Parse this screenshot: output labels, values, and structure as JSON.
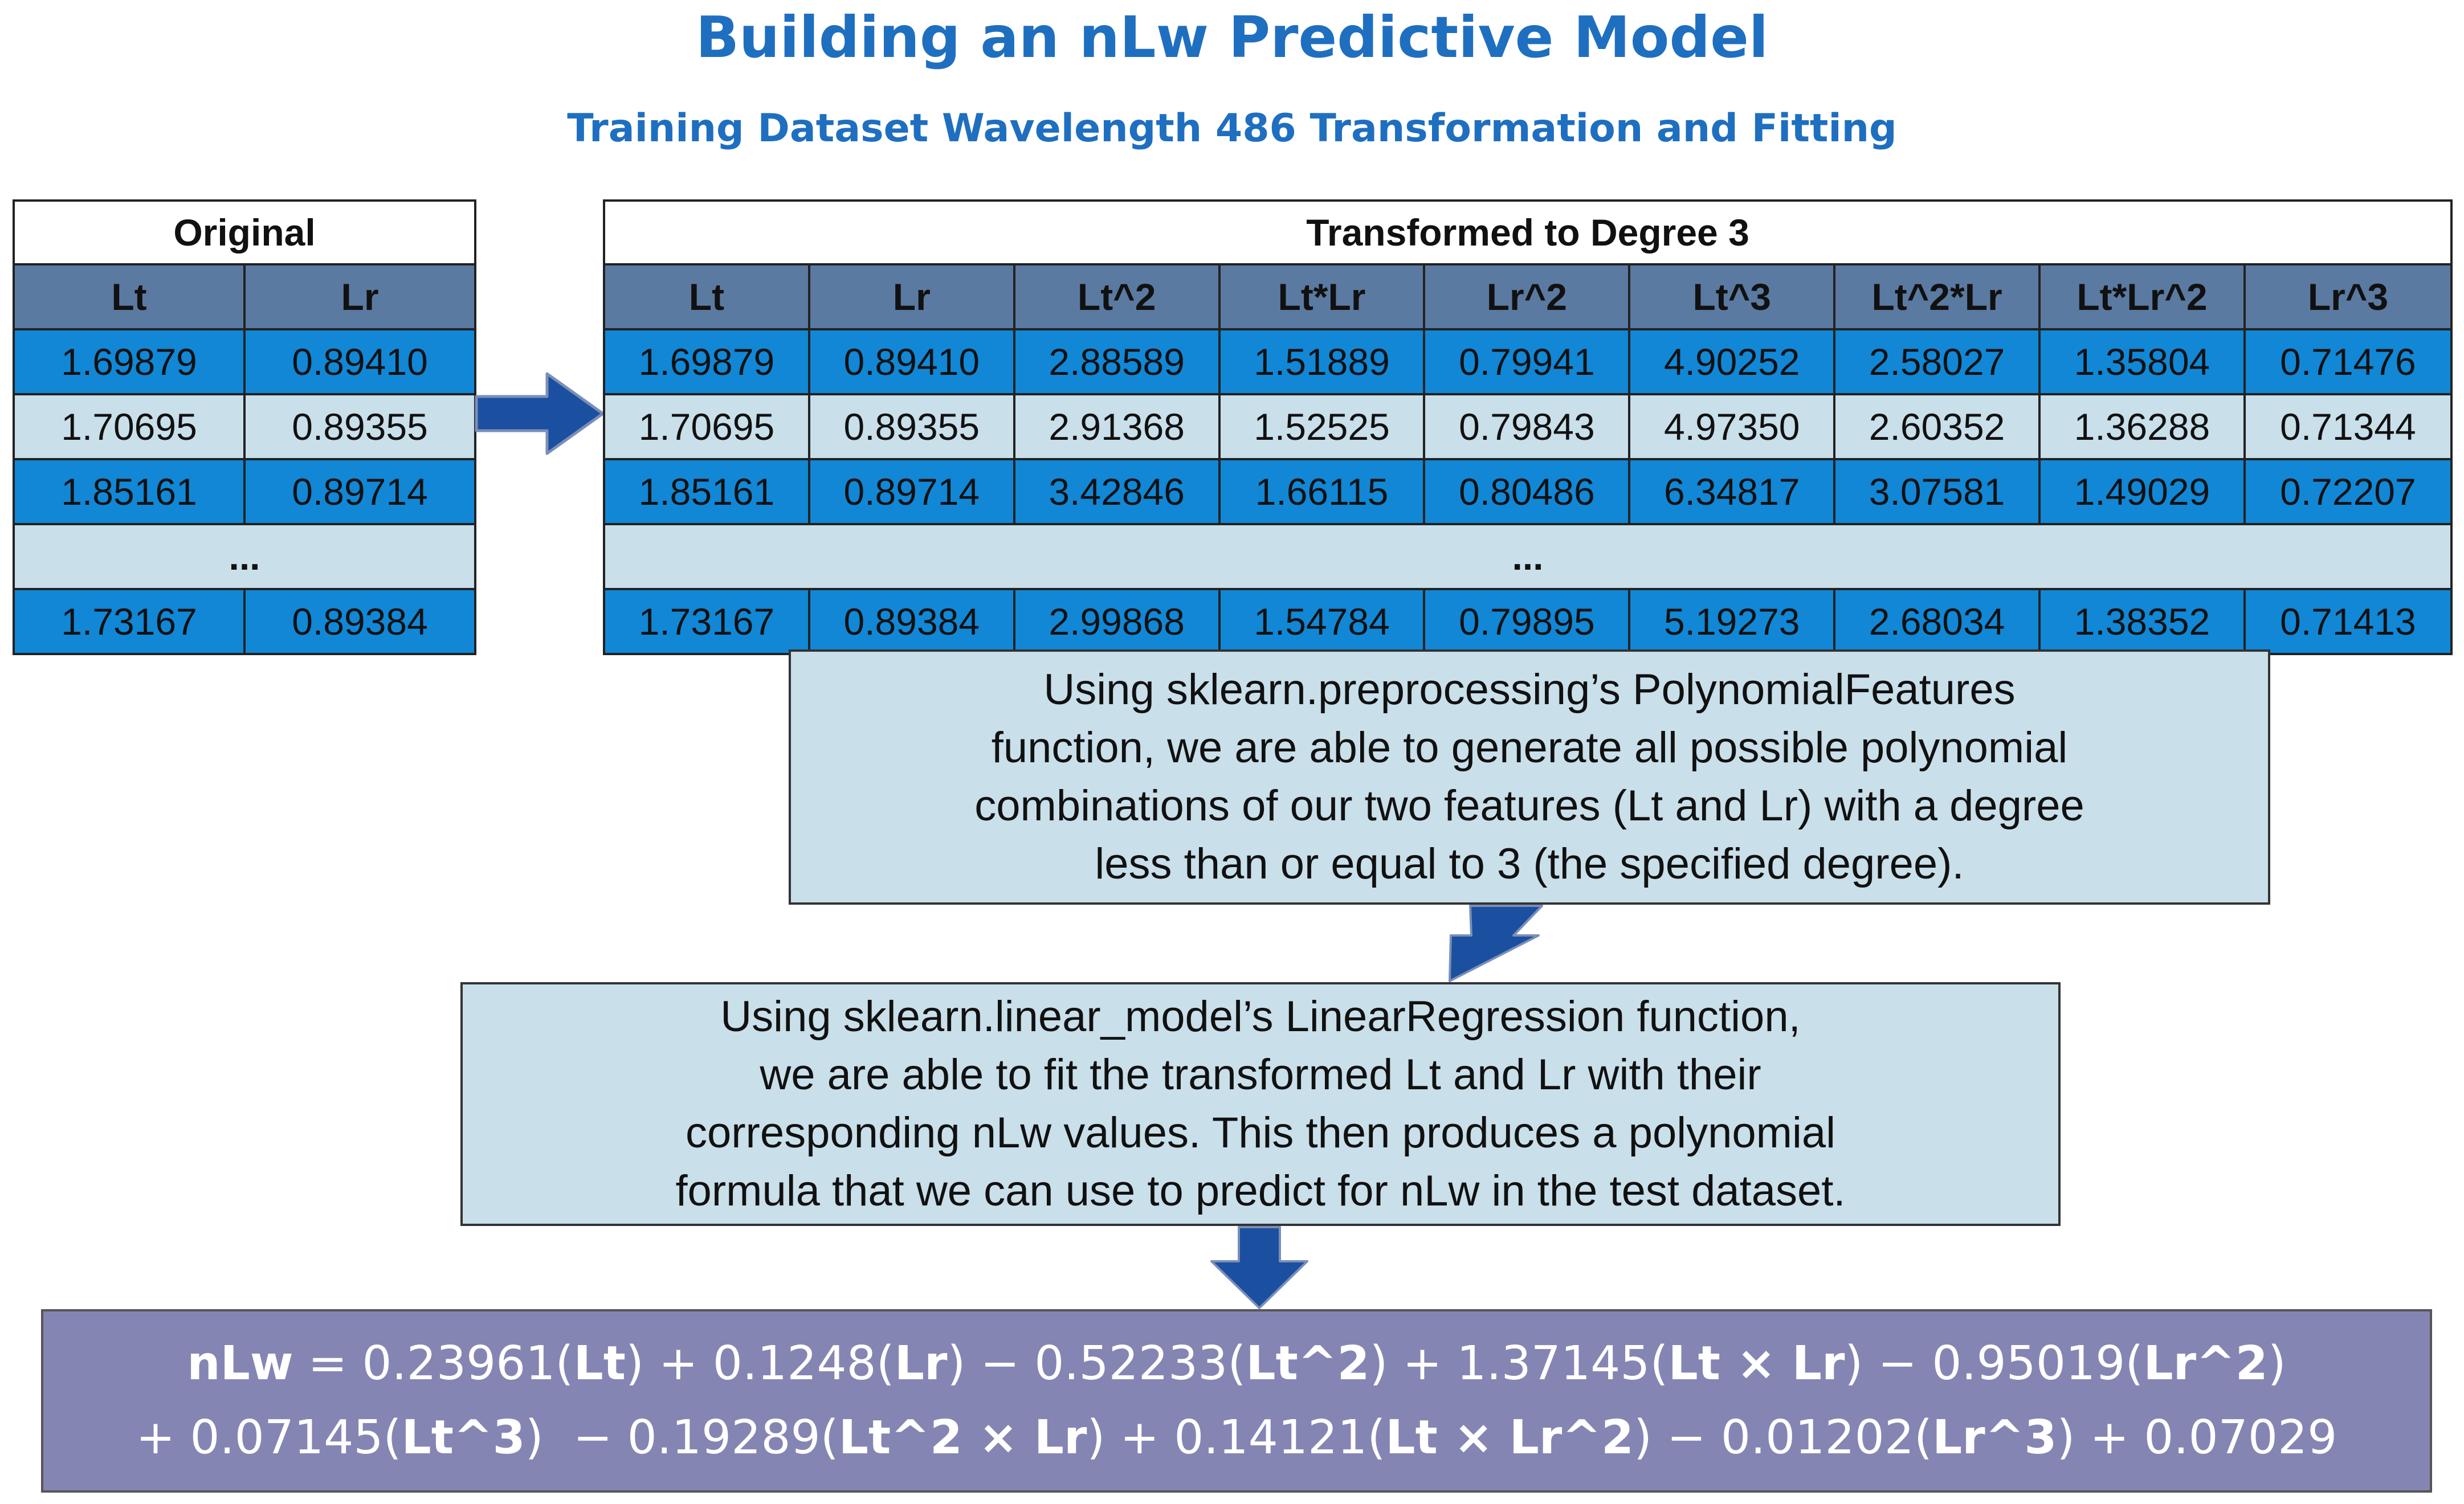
{
  "title": "Building an nLw Predictive Model",
  "subtitle": "Training  Dataset Wavelength 486  Transformation  and Fitting",
  "original_table": {
    "caption": "Original",
    "headers": [
      "Lt",
      "Lr"
    ],
    "rows": [
      [
        "1.69879",
        "0.89410"
      ],
      [
        "1.70695",
        "0.89355"
      ],
      [
        "1.85161",
        "0.89714"
      ]
    ],
    "ellipsis": "...",
    "last_row": [
      "1.73167",
      "0.89384"
    ]
  },
  "transformed_table": {
    "caption": "Transformed to Degree 3",
    "headers": [
      "Lt",
      "Lr",
      "Lt^2",
      "Lt*Lr",
      "Lr^2",
      "Lt^3",
      "Lt^2*Lr",
      "Lt*Lr^2",
      "Lr^3"
    ],
    "rows": [
      [
        "1.69879",
        "0.89410",
        "2.88589",
        "1.51889",
        "0.79941",
        "4.90252",
        "2.58027",
        "1.35804",
        "0.71476"
      ],
      [
        "1.70695",
        "0.89355",
        "2.91368",
        "1.52525",
        "0.79843",
        "4.97350",
        "2.60352",
        "1.36288",
        "0.71344"
      ],
      [
        "1.85161",
        "0.89714",
        "3.42846",
        "1.66115",
        "0.80486",
        "6.34817",
        "3.07581",
        "1.49029",
        "0.72207"
      ]
    ],
    "ellipsis": "...",
    "last_row": [
      "1.73167",
      "0.89384",
      "2.99868",
      "1.54784",
      "0.79895",
      "5.19273",
      "2.68034",
      "1.38352",
      "0.71413"
    ]
  },
  "poly_box": {
    "lines": [
      "Using sklearn.preprocessing’s PolynomialFeatures",
      "function, we are able to generate all possible polynomial",
      "combinations of our two features (Lt and Lr) with a degree",
      "less than or equal to 3 (the specified degree)."
    ]
  },
  "linreg_box": {
    "lines": [
      "Using sklearn.linear_model’s LinearRegression function,",
      "we are able to fit the transformed Lt and Lr with their",
      "corresponding nLw values. This then produces a polynomial",
      "formula that we can use to predict for nLw in the test dataset."
    ]
  },
  "formula": {
    "line1": [
      {
        "t": "nLw",
        "b": true
      },
      {
        "t": " = 0.23961(",
        "b": false
      },
      {
        "t": "Lt",
        "b": true
      },
      {
        "t": ") + 0.1248(",
        "b": false
      },
      {
        "t": "Lr",
        "b": true
      },
      {
        "t": ") − 0.52233(",
        "b": false
      },
      {
        "t": "Lt^2",
        "b": true
      },
      {
        "t": ") + 1.37145(",
        "b": false
      },
      {
        "t": "Lt × Lr",
        "b": true
      },
      {
        "t": ") − 0.95019(",
        "b": false
      },
      {
        "t": "Lr^2",
        "b": true
      },
      {
        "t": ")",
        "b": false
      }
    ],
    "line2": [
      {
        "t": "+ 0.07145(",
        "b": false
      },
      {
        "t": "Lt^3",
        "b": true
      },
      {
        "t": ")  − 0.19289(",
        "b": false
      },
      {
        "t": "Lt^2 × Lr",
        "b": true
      },
      {
        "t": ") + 0.14121(",
        "b": false
      },
      {
        "t": "Lt × Lr^2",
        "b": true
      },
      {
        "t": ") − 0.01202(",
        "b": false
      },
      {
        "t": "Lr^3",
        "b": true
      },
      {
        "t": ") + 0.07029",
        "b": false
      }
    ]
  },
  "colors": {
    "title": "#1f6fc0",
    "header_fill": "#5b7aa1",
    "row_dark": "#1187d6",
    "row_light": "#c9dfea",
    "arrow": "#1b4fa0",
    "formula_fill": "#8585b4"
  },
  "icons": [
    "right-arrow-icon",
    "down-arrow-icon"
  ]
}
